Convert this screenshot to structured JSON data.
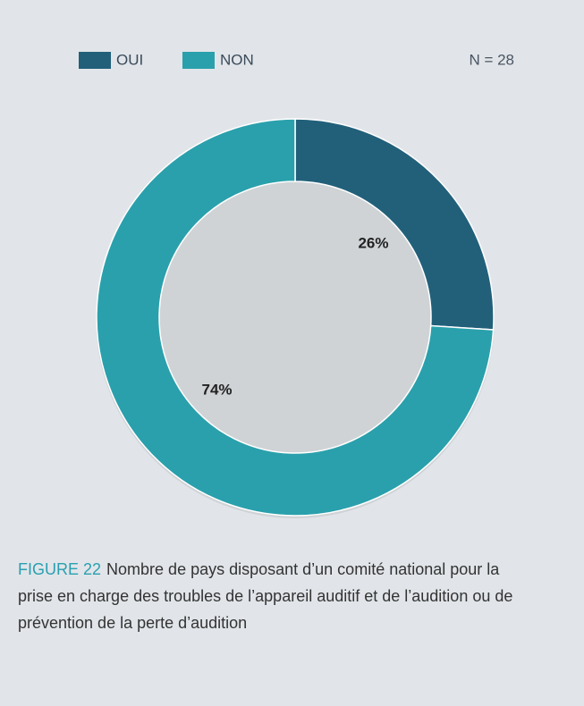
{
  "chart_data": {
    "type": "pie",
    "donut": true,
    "categories": [
      "OUI",
      "NON"
    ],
    "values": [
      26,
      74
    ],
    "value_labels": [
      "26%",
      "74%"
    ],
    "colors": [
      "#22607a",
      "#2aa0ac"
    ],
    "annotation": "N = 28",
    "figure_label": "FIGURE 22",
    "caption": "Nombre de pays disposant d’un comité national pour la prise en charge des troubles de l’appareil auditif et de l’audition ou de prévention de la perte d’audition"
  }
}
